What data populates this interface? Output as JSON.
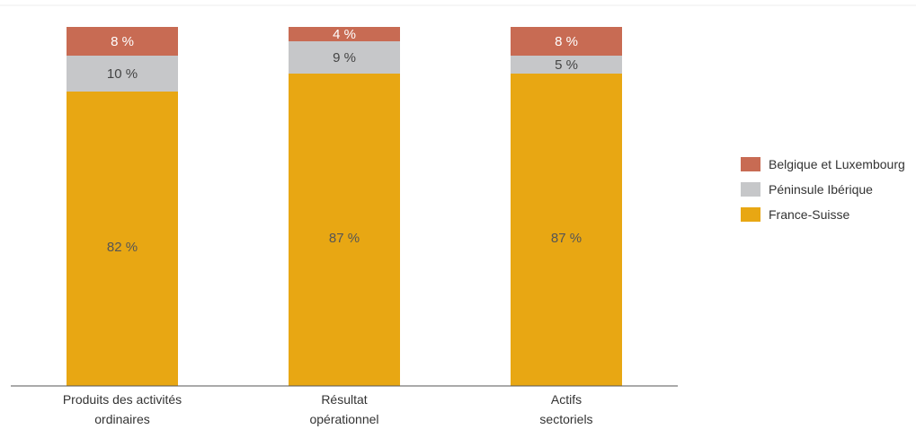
{
  "chart_data": {
    "type": "bar",
    "stacked": true,
    "percent_stacked": true,
    "categories": [
      [
        "Produits des activités",
        "ordinaires"
      ],
      [
        "Résultat",
        "opérationnel"
      ],
      [
        "Actifs",
        "sectoriels"
      ]
    ],
    "series": [
      {
        "name": "France-Suisse",
        "values": [
          82,
          87,
          87
        ],
        "labels": [
          "82 %",
          "87 %",
          "87 %"
        ],
        "color": "#E8A713"
      },
      {
        "name": "Péninsule Ibérique",
        "values": [
          10,
          9,
          5
        ],
        "labels": [
          "10 %",
          "9 %",
          "5 %"
        ],
        "color": "#C6C7C9"
      },
      {
        "name": "Belgique et Luxembourg",
        "values": [
          8,
          4,
          8
        ],
        "labels": [
          "8 %",
          "4 %",
          "8 %"
        ],
        "color": "#C86B53"
      }
    ],
    "legend_order": [
      "Belgique et Luxembourg",
      "Péninsule Ibérique",
      "France-Suisse"
    ],
    "legend_position": "right",
    "ylim": [
      0,
      100
    ],
    "grid": false,
    "title": "",
    "xlabel": "",
    "ylabel": ""
  }
}
